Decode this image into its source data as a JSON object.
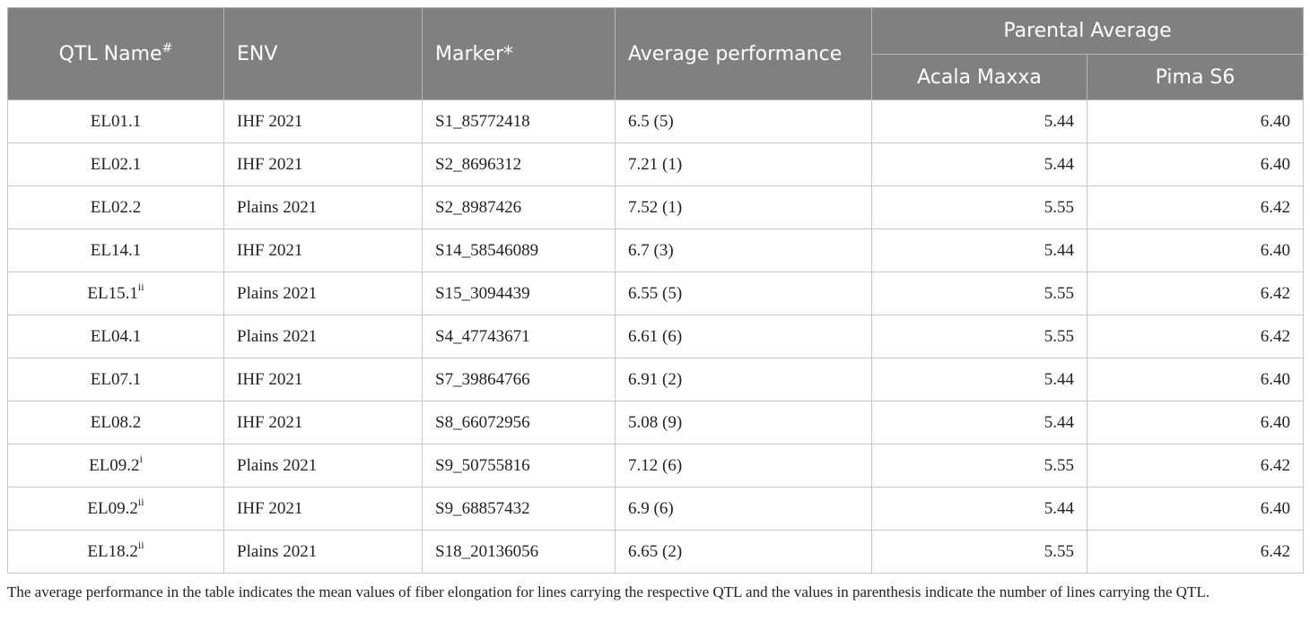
{
  "header": {
    "qtl_name": "QTL Name",
    "qtl_name_sup": "#",
    "env": "ENV",
    "marker": "Marker*",
    "avg_perf": "Average performance",
    "parental_avg": "Parental Average",
    "acala": "Acala Maxxa",
    "pima": "Pima S6"
  },
  "rows": [
    {
      "qtl": "EL01.1",
      "sup": "",
      "env": "IHF 2021",
      "marker": "S1_85772418",
      "avg": "6.5 (5)",
      "acala": "5.44",
      "pima": "6.40"
    },
    {
      "qtl": "EL02.1",
      "sup": "",
      "env": "IHF 2021",
      "marker": "S2_8696312",
      "avg": "7.21 (1)",
      "acala": "5.44",
      "pima": "6.40"
    },
    {
      "qtl": "EL02.2",
      "sup": "",
      "env": "Plains 2021",
      "marker": "S2_8987426",
      "avg": "7.52 (1)",
      "acala": "5.55",
      "pima": "6.42"
    },
    {
      "qtl": "EL14.1",
      "sup": "",
      "env": "IHF 2021",
      "marker": "S14_58546089",
      "avg": "6.7 (3)",
      "acala": "5.44",
      "pima": "6.40"
    },
    {
      "qtl": "EL15.1",
      "sup": "ii",
      "env": "Plains 2021",
      "marker": "S15_3094439",
      "avg": "6.55 (5)",
      "acala": "5.55",
      "pima": "6.42"
    },
    {
      "qtl": "EL04.1",
      "sup": "",
      "env": "Plains 2021",
      "marker": "S4_47743671",
      "avg": "6.61 (6)",
      "acala": "5.55",
      "pima": "6.42"
    },
    {
      "qtl": "EL07.1",
      "sup": "",
      "env": "IHF 2021",
      "marker": "S7_39864766",
      "avg": "6.91 (2)",
      "acala": "5.44",
      "pima": "6.40"
    },
    {
      "qtl": "EL08.2",
      "sup": "",
      "env": "IHF 2021",
      "marker": "S8_66072956",
      "avg": "5.08 (9)",
      "acala": "5.44",
      "pima": "6.40"
    },
    {
      "qtl": "EL09.2",
      "sup": "i",
      "env": "Plains 2021",
      "marker": "S9_50755816",
      "avg": "7.12 (6)",
      "acala": "5.55",
      "pima": "6.42"
    },
    {
      "qtl": "EL09.2",
      "sup": "ii",
      "env": "IHF 2021",
      "marker": "S9_68857432",
      "avg": "6.9 (6)",
      "acala": "5.44",
      "pima": "6.40"
    },
    {
      "qtl": "EL18.2",
      "sup": "ii",
      "env": "Plains 2021",
      "marker": "S18_20136056",
      "avg": "6.65 (2)",
      "acala": "5.55",
      "pima": "6.42"
    }
  ],
  "footnote": "The average performance in the table indicates the mean values of fiber elongation for lines carrying the respective QTL and the values in parenthesis indicate the number of lines carrying the QTL."
}
